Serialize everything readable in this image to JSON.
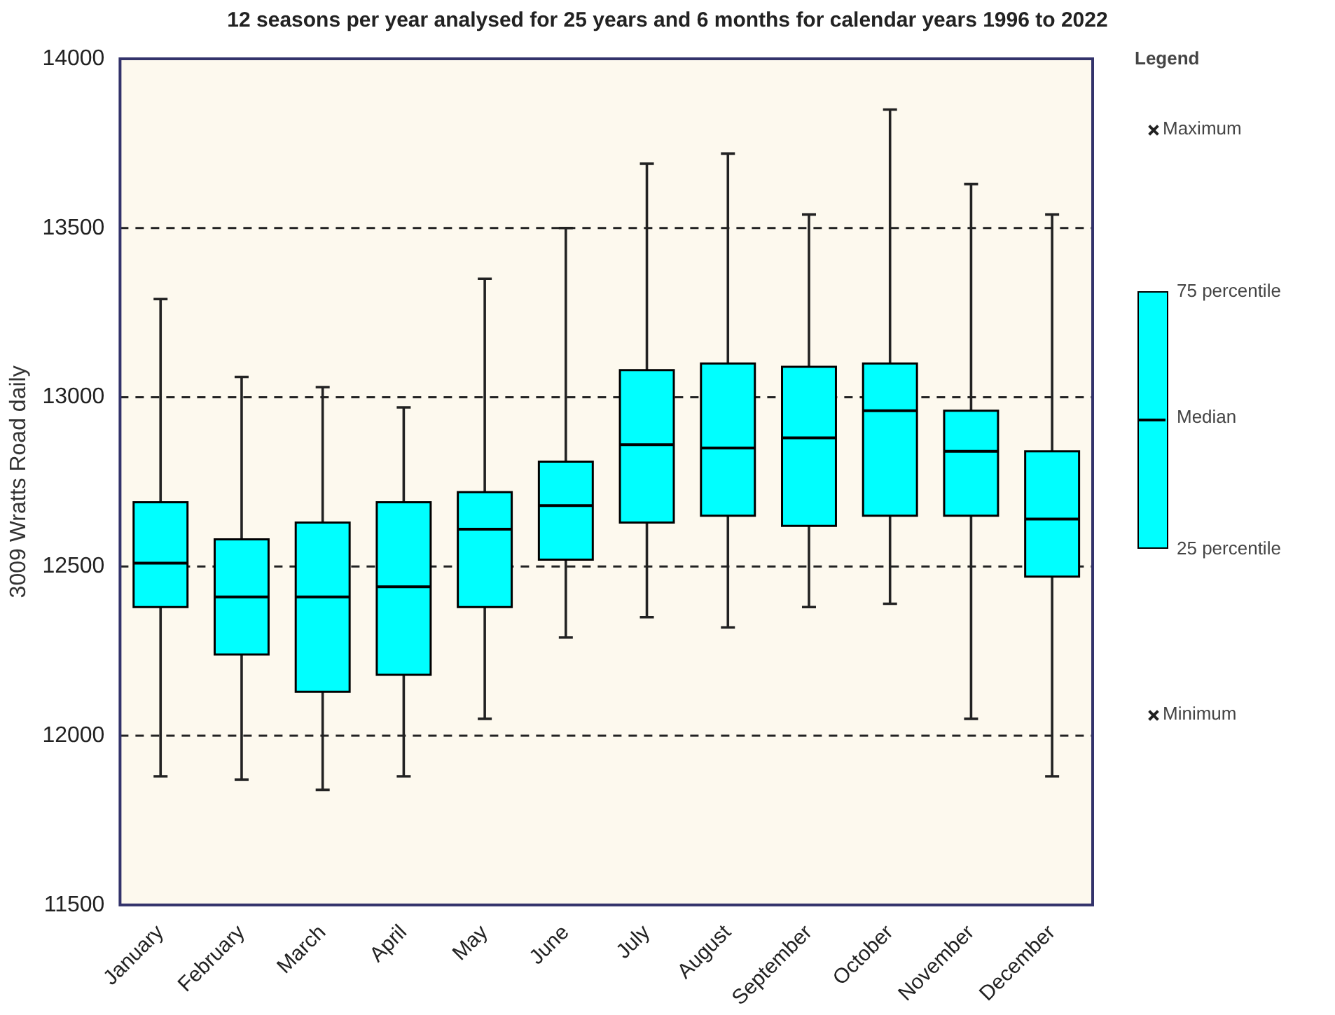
{
  "chart_data": {
    "type": "box",
    "title": "12 seasons per year analysed for 25 years and 6 months for calendar years 1996 to 2022",
    "ylabel": "3009 Wratts Road daily",
    "categories": [
      "January",
      "February",
      "March",
      "April",
      "May",
      "June",
      "July",
      "August",
      "September",
      "October",
      "November",
      "December"
    ],
    "series": [
      {
        "color": "#00ffff",
        "boxes": [
          {
            "low": 11880,
            "q1": 12380,
            "median": 12510,
            "q3": 12690,
            "high": 13290
          },
          {
            "low": 11870,
            "q1": 12240,
            "median": 12410,
            "q3": 12580,
            "high": 13060
          },
          {
            "low": 11840,
            "q1": 12130,
            "median": 12410,
            "q3": 12630,
            "high": 13030
          },
          {
            "low": 11880,
            "q1": 12180,
            "median": 12440,
            "q3": 12690,
            "high": 12970
          },
          {
            "low": 12050,
            "q1": 12380,
            "median": 12610,
            "q3": 12720,
            "high": 13350
          },
          {
            "low": 12290,
            "q1": 12520,
            "median": 12680,
            "q3": 12810,
            "high": 13500
          },
          {
            "low": 12350,
            "q1": 12630,
            "median": 12860,
            "q3": 13080,
            "high": 13690
          },
          {
            "low": 12320,
            "q1": 12650,
            "median": 12850,
            "q3": 13100,
            "high": 13720
          },
          {
            "low": 12380,
            "q1": 12620,
            "median": 12880,
            "q3": 13090,
            "high": 13540
          },
          {
            "low": 12390,
            "q1": 12650,
            "median": 12960,
            "q3": 13100,
            "high": 13850
          },
          {
            "low": 12050,
            "q1": 12650,
            "median": 12840,
            "q3": 12960,
            "high": 13630
          },
          {
            "low": 11880,
            "q1": 12470,
            "median": 12640,
            "q3": 12840,
            "high": 13540
          }
        ]
      }
    ],
    "ylim": [
      11500,
      14000
    ],
    "yticks": [
      11500,
      12000,
      12500,
      13000,
      13500,
      14000
    ],
    "grid": "y",
    "annotations": [
      "Legend",
      "Maximum",
      "75 percentile",
      "Median",
      "25 percentile",
      "Minimum"
    ]
  }
}
